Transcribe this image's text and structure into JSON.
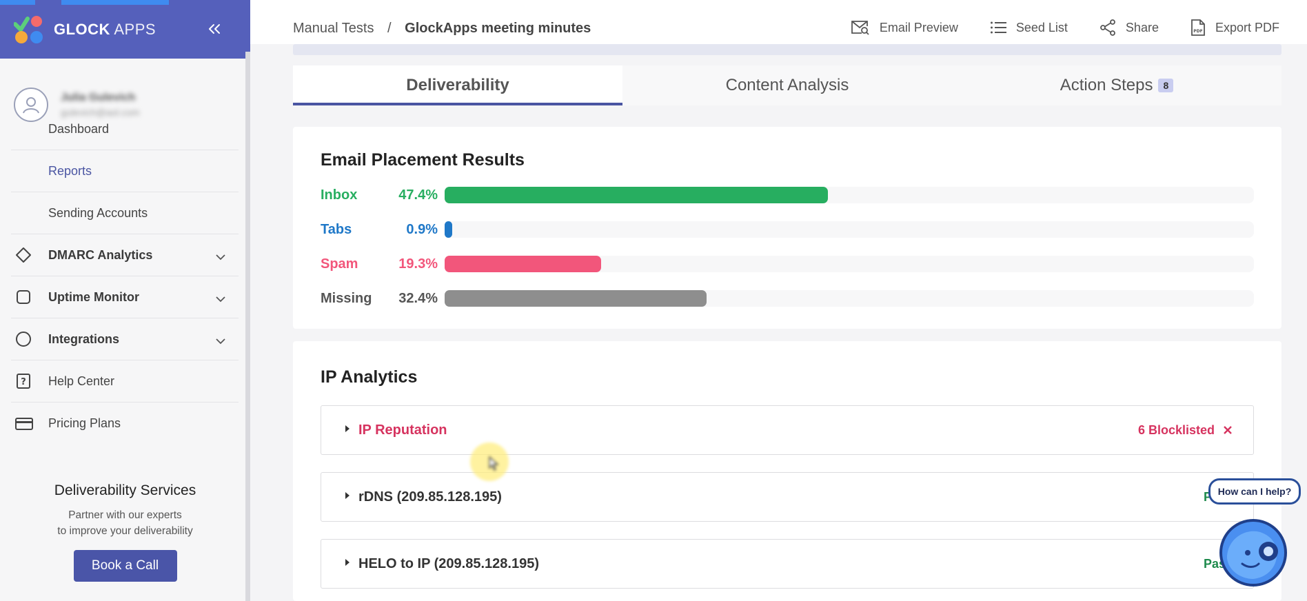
{
  "brand": {
    "name_bold": "GLOCK",
    "name_light": "APPS"
  },
  "user": {
    "name": "Julia Gulevich",
    "email": "gulevich@aol.com"
  },
  "sidebar": {
    "items": [
      {
        "label": "Dashboard"
      },
      {
        "label": "Reports"
      },
      {
        "label": "Sending Accounts"
      },
      {
        "label": "DMARC Analytics"
      },
      {
        "label": "Uptime Monitor"
      },
      {
        "label": "Integrations"
      },
      {
        "label": "Help Center"
      },
      {
        "label": "Pricing Plans"
      }
    ],
    "services": {
      "title": "Deliverability Services",
      "line1": "Partner with our experts",
      "line2": "to improve your deliverability",
      "button": "Book a Call"
    }
  },
  "header": {
    "breadcrumb_parent": "Manual Tests",
    "breadcrumb_sep": "/",
    "breadcrumb_current": "GlockApps meeting minutes",
    "actions": {
      "email_preview": "Email Preview",
      "seed_list": "Seed List",
      "share": "Share",
      "export_pdf": "Export PDF"
    }
  },
  "tabs": {
    "deliverability": "Deliverability",
    "content_analysis": "Content Analysis",
    "action_steps": "Action Steps",
    "action_steps_count": "8"
  },
  "placement": {
    "title": "Email Placement Results",
    "rows": [
      {
        "label": "Inbox",
        "pct": "47.4%",
        "value": 47.4,
        "color": "#27ae60"
      },
      {
        "label": "Tabs",
        "pct": "0.9%",
        "value": 0.9,
        "color": "#1f78c8"
      },
      {
        "label": "Spam",
        "pct": "19.3%",
        "value": 19.3,
        "color": "#f2567b"
      },
      {
        "label": "Missing",
        "pct": "32.4%",
        "value": 32.4,
        "color": "#8e8e8e"
      }
    ]
  },
  "ip_analytics": {
    "title": "IP Analytics",
    "items": [
      {
        "title": "IP Reputation",
        "status": "6 Blocklisted"
      },
      {
        "title": "rDNS (209.85.128.195)",
        "status": "Pass"
      },
      {
        "title": "HELO to IP (209.85.128.195)",
        "status": "Pass"
      }
    ]
  },
  "help": {
    "bubble": "How can I help?"
  },
  "colors": {
    "accent": "#4a55a2",
    "pass": "#1e8a4c",
    "fail": "#d6335f",
    "tabs_blue": "#1f78c8"
  }
}
